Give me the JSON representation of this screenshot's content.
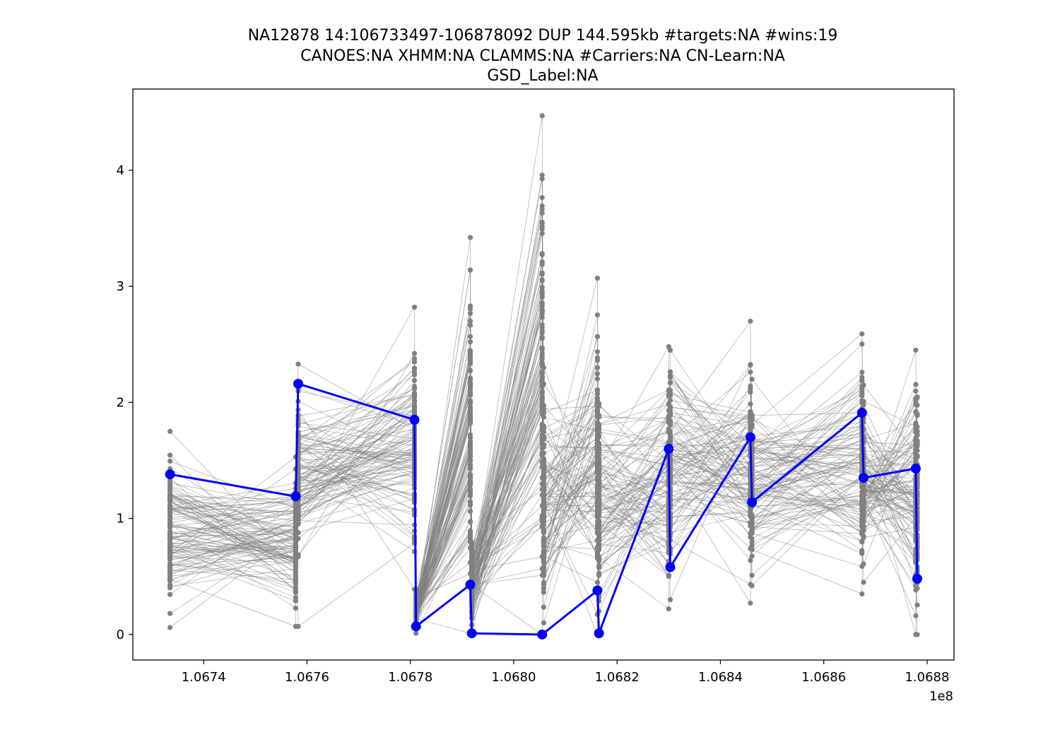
{
  "chart_data": {
    "type": "line",
    "title_lines": [
      "NA12878 14:106733497-106878092 DUP 144.595kb #targets:NA #wins:19",
      "CANOES:NA XHMM:NA CLAMMS:NA #Carriers:NA CN-Learn:NA",
      "GSD_Label:NA"
    ],
    "xlabel": "",
    "ylabel": "",
    "x_offset_label": "1e8",
    "xlim": [
      106726300,
      106885200
    ],
    "ylim": [
      -0.22,
      4.7
    ],
    "x_ticks": [
      {
        "value": 106740000,
        "label": "1.0674"
      },
      {
        "value": 106760000,
        "label": "1.0676"
      },
      {
        "value": 106780000,
        "label": "1.0678"
      },
      {
        "value": 106800000,
        "label": "1.0680"
      },
      {
        "value": 106820000,
        "label": "1.0682"
      },
      {
        "value": 106840000,
        "label": "1.0684"
      },
      {
        "value": 106860000,
        "label": "1.0686"
      },
      {
        "value": 106880000,
        "label": "1.0688"
      }
    ],
    "y_ticks": [
      {
        "value": 0,
        "label": "0"
      },
      {
        "value": 1,
        "label": "1"
      },
      {
        "value": 2,
        "label": "2"
      },
      {
        "value": 3,
        "label": "3"
      },
      {
        "value": 4,
        "label": "4"
      }
    ],
    "grid": false,
    "colors": {
      "background_samples": "#808080",
      "highlight": "#0000ff"
    },
    "window_x": [
      106733497,
      106757800,
      106758300,
      106780800,
      106781100,
      106791600,
      106791900,
      106805500,
      106805800,
      106816200,
      106816500,
      106830000,
      106830300,
      106845800,
      106846100,
      106867400,
      106867700,
      106877800,
      106878092
    ],
    "highlight_series": {
      "name": "NA12878",
      "x": [
        106733497,
        106757800,
        106758300,
        106780800,
        106781100,
        106791600,
        106791900,
        106805500,
        106816200,
        106816500,
        106830000,
        106830300,
        106845800,
        106846100,
        106867400,
        106867700,
        106877800,
        106878092
      ],
      "y": [
        1.38,
        1.19,
        2.16,
        1.85,
        0.07,
        0.43,
        0.01,
        0.0,
        0.38,
        0.01,
        1.6,
        0.58,
        1.7,
        1.14,
        1.91,
        1.35,
        1.43,
        0.48
      ]
    },
    "background_series": {
      "num_samples": 120,
      "window_ranges": [
        [
          0.06,
          1.75
        ],
        [
          0.07,
          1.57
        ],
        [
          0.4,
          2.33
        ],
        [
          0.4,
          2.82
        ],
        [
          0.02,
          0.39
        ],
        [
          0.0,
          3.42
        ],
        [
          0.0,
          0.9
        ],
        [
          0.0,
          4.47
        ],
        [
          0.0,
          2.3
        ],
        [
          0.0,
          3.07
        ],
        [
          0.0,
          2.3
        ],
        [
          0.22,
          2.48
        ],
        [
          0.28,
          2.6
        ],
        [
          0.28,
          2.7
        ],
        [
          0.42,
          2.2
        ],
        [
          0.35,
          2.58
        ],
        [
          0.5,
          2.1
        ],
        [
          0.0,
          2.45
        ],
        [
          0.0,
          2.33
        ]
      ],
      "window_extremes": [
        [
          0.06,
          1.75
        ],
        [
          0.07,
          1.53
        ],
        [
          0.07,
          2.33
        ],
        [
          0.39,
          2.82
        ],
        [
          0.01,
          0.39
        ],
        [
          0.01,
          3.42
        ],
        [
          0.0,
          0.5
        ],
        [
          0.0,
          4.47
        ],
        [
          0.1,
          2.3
        ],
        [
          0.0,
          3.07
        ],
        [
          0.0,
          0.2
        ],
        [
          0.22,
          2.48
        ],
        [
          0.3,
          2.45
        ],
        [
          0.27,
          2.7
        ],
        [
          0.42,
          2.2
        ],
        [
          0.35,
          2.59
        ],
        [
          0.45,
          2.15
        ],
        [
          0.0,
          2.45
        ],
        [
          0.0,
          1.9
        ]
      ]
    }
  }
}
